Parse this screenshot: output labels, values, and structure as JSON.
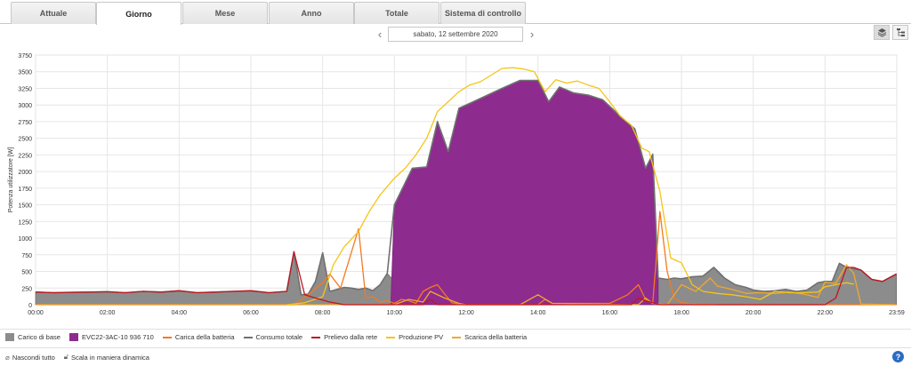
{
  "tabs": [
    {
      "label": "Attuale",
      "active": false
    },
    {
      "label": "Giorno",
      "active": true
    },
    {
      "label": "Mese",
      "active": false
    },
    {
      "label": "Anno",
      "active": false
    },
    {
      "label": "Totale",
      "active": false
    },
    {
      "label": "Sistema di controllo",
      "active": false
    }
  ],
  "date_nav": {
    "date": "sabato, 12 settembre 2020"
  },
  "icons": {
    "prev": "chevron-left-icon",
    "next": "chevron-right-icon",
    "stacked_view": "layers-icon",
    "detail_view": "list-tree-icon",
    "hide_all": "eye-off-icon",
    "dynamic_scale": "unlock-icon",
    "help": "help-icon"
  },
  "footer": {
    "hide_all": "Nascondi tutto",
    "dynamic_scale": "Scala in maniera dinamica",
    "help": "?"
  },
  "colors": {
    "base_load": "#8c8c8c",
    "ev": "#8e2b8e",
    "battery_charge": "#f47a20",
    "total_consumption": "#707070",
    "grid_draw": "#c0161e",
    "pv_production": "#f5c518",
    "battery_discharge": "#f0a830"
  },
  "chart_data": {
    "type": "area",
    "title": "",
    "xlabel": "",
    "ylabel": "Potenza utilizzatore [W]",
    "ylim": [
      0,
      3750
    ],
    "xlim": [
      0,
      24
    ],
    "yticks": [
      "0",
      "250",
      "500",
      "750",
      "1000",
      "1250",
      "1500",
      "1750",
      "2000",
      "2250",
      "2500",
      "2750",
      "3000",
      "3250",
      "3500",
      "3750"
    ],
    "xticks": [
      "00:00",
      "02:00",
      "04:00",
      "06:00",
      "08:00",
      "10:00",
      "12:00",
      "14:00",
      "16:00",
      "18:00",
      "20:00",
      "22:00",
      "23:59"
    ],
    "grid": true,
    "legend_position": "bottom",
    "series": [
      {
        "name": "Carico di base",
        "kind": "area",
        "x": [
          0,
          0.5,
          1,
          1.5,
          2,
          2.5,
          3,
          3.5,
          4,
          4.5,
          5,
          5.5,
          6,
          6.5,
          7,
          7.2,
          7.4,
          7.6,
          7.8,
          8,
          8.2,
          8.4,
          8.6,
          8.8,
          9,
          9.2,
          9.4,
          9.6,
          9.8,
          10,
          10.2,
          10.4,
          10.6,
          10.8,
          11,
          11.2,
          11.4,
          11.6,
          11.8,
          12,
          12.3,
          12.6,
          12.9,
          13.2,
          13.5,
          13.8,
          14,
          14.2,
          14.4,
          14.6,
          14.8,
          15,
          15.3,
          15.6,
          15.9,
          16.2,
          16.5,
          16.8,
          17,
          17.2,
          17.4,
          17.6,
          17.8,
          18,
          18.3,
          18.6,
          18.9,
          19.2,
          19.5,
          19.8,
          20,
          20.3,
          20.6,
          20.9,
          21.2,
          21.5,
          21.8,
          22,
          22.2,
          22.4,
          22.6,
          22.8,
          23,
          23.3,
          23.6,
          23.99
        ],
        "y": [
          190,
          180,
          185,
          190,
          195,
          180,
          200,
          190,
          210,
          180,
          190,
          200,
          210,
          180,
          200,
          790,
          150,
          160,
          350,
          780,
          200,
          230,
          260,
          250,
          230,
          250,
          210,
          300,
          470,
          350,
          480,
          1600,
          300,
          320,
          2060,
          900,
          440,
          350,
          300,
          300,
          290,
          280,
          310,
          300,
          320,
          350,
          380,
          430,
          500,
          390,
          430,
          340,
          320,
          310,
          430,
          600,
          800,
          420,
          410,
          400,
          400,
          380,
          400,
          390,
          420,
          430,
          560,
          400,
          300,
          260,
          220,
          200,
          210,
          230,
          200,
          220,
          330,
          350,
          350,
          620,
          560,
          540,
          520,
          380,
          350,
          460
        ]
      },
      {
        "name": "EVC22-3AC-10 936 710",
        "kind": "area",
        "x": [
          9.9,
          10,
          10.5,
          10.9,
          11.2,
          11.5,
          11.8,
          12.2,
          12.6,
          13,
          13.5,
          14,
          14.3,
          14.6,
          15,
          15.4,
          15.8,
          16.3,
          16.7,
          17,
          17.2,
          17.35
        ],
        "y": [
          0,
          1500,
          2050,
          2070,
          2750,
          2300,
          2950,
          3050,
          3150,
          3250,
          3370,
          3370,
          3050,
          3270,
          3180,
          3150,
          3080,
          2830,
          2640,
          2050,
          2260,
          400
        ]
      },
      {
        "name": "Carica della batteria",
        "kind": "line",
        "x": [
          0,
          7.2,
          7.6,
          8,
          8.2,
          8.5,
          9,
          9.2,
          9.4,
          9.6,
          9.8,
          10,
          10.2,
          10.4,
          10.6,
          10.8,
          11,
          11.2,
          11.4,
          11.6,
          11.8,
          12,
          13,
          14,
          14.2,
          14.4,
          16,
          16.5,
          16.8,
          17,
          17.2,
          17.4,
          17.6,
          17.8,
          18,
          18.2,
          18.5,
          19,
          19.5,
          23.99
        ],
        "y": [
          0,
          0,
          150,
          330,
          460,
          250,
          1140,
          100,
          120,
          40,
          60,
          20,
          80,
          60,
          20,
          200,
          260,
          300,
          160,
          30,
          10,
          0,
          0,
          0,
          80,
          20,
          20,
          150,
          300,
          80,
          20,
          1400,
          500,
          100,
          30,
          20,
          10,
          0,
          0,
          0
        ]
      },
      {
        "name": "Consumo totale",
        "kind": "line",
        "x": [
          0,
          0.5,
          1,
          1.5,
          2,
          2.5,
          3,
          3.5,
          4,
          4.5,
          5,
          5.5,
          6,
          6.5,
          7,
          7.2,
          7.4,
          7.6,
          7.8,
          8,
          8.2,
          8.4,
          8.6,
          8.8,
          9,
          9.2,
          9.4,
          9.6,
          9.8,
          10,
          10.5,
          10.9,
          11.2,
          11.5,
          11.8,
          12.2,
          12.6,
          13,
          13.5,
          14,
          14.3,
          14.6,
          15,
          15.4,
          15.8,
          16.3,
          16.7,
          17,
          17.2,
          17.35,
          17.6,
          17.8,
          18,
          18.3,
          18.6,
          18.9,
          19.2,
          19.5,
          19.8,
          20,
          20.3,
          20.6,
          20.9,
          21.2,
          21.5,
          21.8,
          22,
          22.2,
          22.4,
          22.6,
          22.8,
          23,
          23.3,
          23.6,
          23.99
        ],
        "y": [
          190,
          180,
          185,
          190,
          195,
          180,
          200,
          190,
          210,
          180,
          190,
          200,
          210,
          180,
          200,
          790,
          150,
          160,
          350,
          780,
          200,
          230,
          260,
          250,
          230,
          250,
          210,
          300,
          470,
          1500,
          2050,
          2070,
          2750,
          2300,
          2950,
          3050,
          3150,
          3250,
          3370,
          3370,
          3050,
          3270,
          3180,
          3150,
          3080,
          2830,
          2640,
          2050,
          2260,
          400,
          380,
          400,
          390,
          420,
          430,
          560,
          400,
          300,
          260,
          220,
          200,
          210,
          230,
          200,
          220,
          330,
          350,
          350,
          620,
          560,
          540,
          520,
          380,
          350,
          460
        ]
      },
      {
        "name": "Prelievo dalla rete",
        "kind": "line",
        "x": [
          0,
          0.5,
          1,
          1.5,
          2,
          2.5,
          3,
          3.5,
          4,
          4.5,
          5,
          5.5,
          6,
          6.5,
          7,
          7.2,
          7.5,
          7.8,
          8.2,
          8.6,
          9,
          10,
          10.8,
          11,
          11.2,
          16,
          16.6,
          16.8,
          17,
          17.4,
          18,
          19,
          20,
          21,
          22,
          22.3,
          22.6,
          22.8,
          23,
          23.3,
          23.6,
          23.99
        ],
        "y": [
          190,
          180,
          185,
          190,
          195,
          180,
          200,
          190,
          210,
          180,
          190,
          200,
          210,
          180,
          200,
          800,
          150,
          100,
          40,
          0,
          0,
          0,
          0,
          80,
          0,
          0,
          0,
          100,
          60,
          0,
          0,
          0,
          0,
          0,
          0,
          100,
          560,
          560,
          520,
          380,
          350,
          460
        ]
      },
      {
        "name": "Produzione PV",
        "kind": "line",
        "x": [
          7,
          7.5,
          8,
          8.3,
          8.6,
          9,
          9.3,
          9.6,
          10,
          10.3,
          10.6,
          10.9,
          11.2,
          11.5,
          11.8,
          12.1,
          12.4,
          12.7,
          13,
          13.3,
          13.6,
          13.9,
          14.2,
          14.5,
          14.8,
          15.1,
          15.4,
          15.7,
          16,
          16.3,
          16.6,
          16.9,
          17.1,
          17.4,
          17.7,
          18,
          18.3,
          18.6,
          19,
          19.4,
          19.8,
          20.2,
          20.6,
          21,
          21.4,
          21.8,
          22,
          22.3,
          22.6,
          22.8
        ],
        "y": [
          0,
          30,
          120,
          600,
          870,
          1100,
          1400,
          1650,
          1900,
          2050,
          2250,
          2500,
          2900,
          3050,
          3200,
          3300,
          3350,
          3450,
          3550,
          3560,
          3540,
          3500,
          3200,
          3380,
          3330,
          3360,
          3300,
          3250,
          3050,
          2830,
          2700,
          2350,
          2300,
          1700,
          700,
          630,
          300,
          200,
          170,
          150,
          120,
          80,
          200,
          180,
          180,
          190,
          270,
          300,
          330,
          310
        ]
      },
      {
        "name": "Scarica della batteria",
        "kind": "line",
        "x": [
          0,
          10,
          10.4,
          10.8,
          11,
          11.4,
          11.8,
          12,
          13.5,
          14,
          14.4,
          16.8,
          17,
          17.2,
          17.6,
          18,
          18.4,
          18.8,
          19,
          19.4,
          19.8,
          20.2,
          20.6,
          21,
          21.4,
          21.8,
          22,
          22.3,
          22.6,
          22.8,
          23,
          23.99
        ],
        "y": [
          0,
          0,
          80,
          40,
          200,
          100,
          20,
          0,
          0,
          150,
          20,
          0,
          100,
          20,
          0,
          300,
          200,
          400,
          280,
          230,
          170,
          180,
          170,
          190,
          160,
          110,
          340,
          320,
          600,
          470,
          10,
          0
        ]
      }
    ]
  }
}
